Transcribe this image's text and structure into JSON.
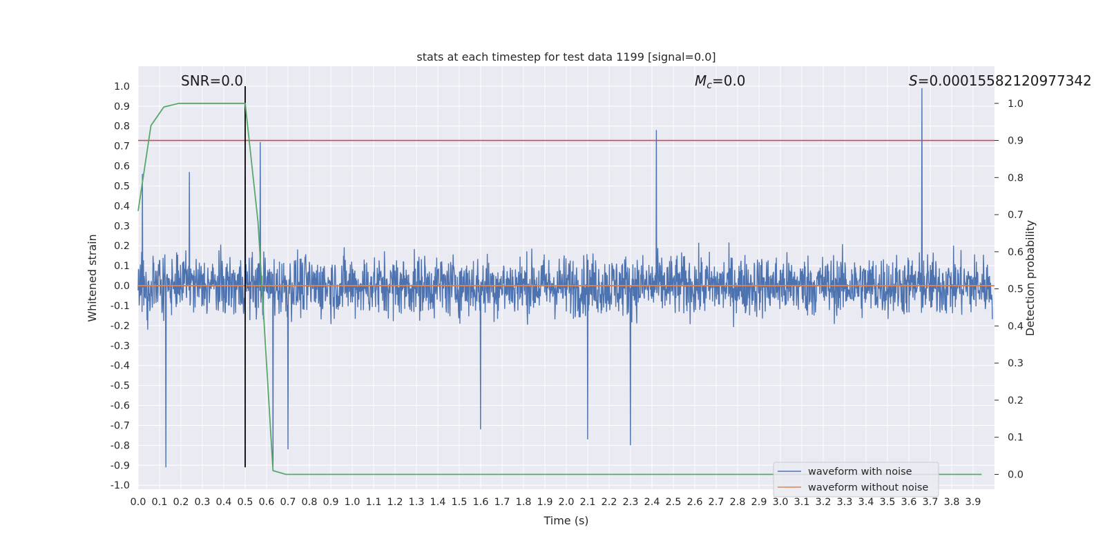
{
  "colors": {
    "plot_bg": "#EAEAF2",
    "grid": "#FFFFFF",
    "noisy": "#4C72B0",
    "clean": "#DD8452",
    "probability": "#55A868",
    "threshold": "#C44E52",
    "marker": "#000000"
  },
  "chart_data": {
    "type": "line",
    "title": "stats at each timestep for test data 1199 [signal=0.0]",
    "xlabel": "Time (s)",
    "ylabel_left": "Whitened strain",
    "ylabel_right": "Detection probability",
    "xlim": [
      0.0,
      4.0
    ],
    "ylim_left": [
      -1.02,
      1.1
    ],
    "ylim_right": [
      -0.04,
      1.1
    ],
    "x_ticks": [
      "0.0",
      "0.1",
      "0.2",
      "0.3",
      "0.4",
      "0.5",
      "0.6",
      "0.7",
      "0.8",
      "0.9",
      "1.0",
      "1.1",
      "1.2",
      "1.3",
      "1.4",
      "1.5",
      "1.6",
      "1.7",
      "1.8",
      "1.9",
      "2.0",
      "2.1",
      "2.2",
      "2.3",
      "2.4",
      "2.5",
      "2.6",
      "2.7",
      "2.8",
      "2.9",
      "3.0",
      "3.1",
      "3.2",
      "3.3",
      "3.4",
      "3.5",
      "3.6",
      "3.7",
      "3.8",
      "3.9"
    ],
    "y_ticks_left": [
      "-1.0",
      "-0.9",
      "-0.8",
      "-0.7",
      "-0.6",
      "-0.5",
      "-0.4",
      "-0.3",
      "-0.2",
      "-0.1",
      "0.0",
      "0.1",
      "0.2",
      "0.3",
      "0.4",
      "0.5",
      "0.6",
      "0.7",
      "0.8",
      "0.9",
      "1.0"
    ],
    "y_ticks_right": [
      "0.0",
      "0.1",
      "0.2",
      "0.3",
      "0.4",
      "0.5",
      "0.6",
      "0.7",
      "0.8",
      "0.9",
      "1.0"
    ],
    "grid": true,
    "legend_position": "lower-right",
    "annotations": {
      "snr": "SNR=0.0",
      "mc_symbol": "M",
      "mc_subscript": "c",
      "mc_value": "=0.0",
      "s_symbol": "S",
      "s_value": "=0.00015582120977342"
    },
    "series": [
      {
        "name": "waveform with noise",
        "axis": "left",
        "style": "dense noise, peak ≈ 1.0 at t≈3.66 s",
        "sampled_peaks": [
          {
            "x": 0.02,
            "y": 0.56
          },
          {
            "x": 0.13,
            "y": -0.91
          },
          {
            "x": 0.24,
            "y": 0.57
          },
          {
            "x": 0.5,
            "y": 0.55
          },
          {
            "x": 0.57,
            "y": 0.72
          },
          {
            "x": 0.63,
            "y": -0.91
          },
          {
            "x": 0.7,
            "y": -0.82
          },
          {
            "x": 1.6,
            "y": -0.72
          },
          {
            "x": 2.1,
            "y": -0.77
          },
          {
            "x": 2.3,
            "y": -0.8
          },
          {
            "x": 2.42,
            "y": 0.78
          },
          {
            "x": 3.66,
            "y": 0.99
          }
        ]
      },
      {
        "name": "waveform without noise",
        "axis": "left",
        "x": [
          0.0,
          4.0
        ],
        "y": [
          0.0,
          0.0
        ]
      },
      {
        "name": "detection probability",
        "axis": "right",
        "x": [
          0.0,
          0.06,
          0.12,
          0.19,
          0.25,
          0.31,
          0.38,
          0.44,
          0.5,
          0.56,
          0.63,
          0.69,
          0.75,
          1.0,
          2.0,
          3.0,
          3.94
        ],
        "y": [
          0.71,
          0.94,
          0.99,
          1.0,
          1.0,
          1.0,
          1.0,
          1.0,
          1.0,
          0.68,
          0.01,
          0.0,
          0.0,
          0.0,
          0.0,
          0.0,
          0.0
        ]
      }
    ],
    "threshold_line": {
      "axis": "right",
      "y": 0.9
    },
    "vertical_marker": {
      "x": 0.5,
      "y_range": [
        -0.91,
        1.0
      ]
    }
  }
}
